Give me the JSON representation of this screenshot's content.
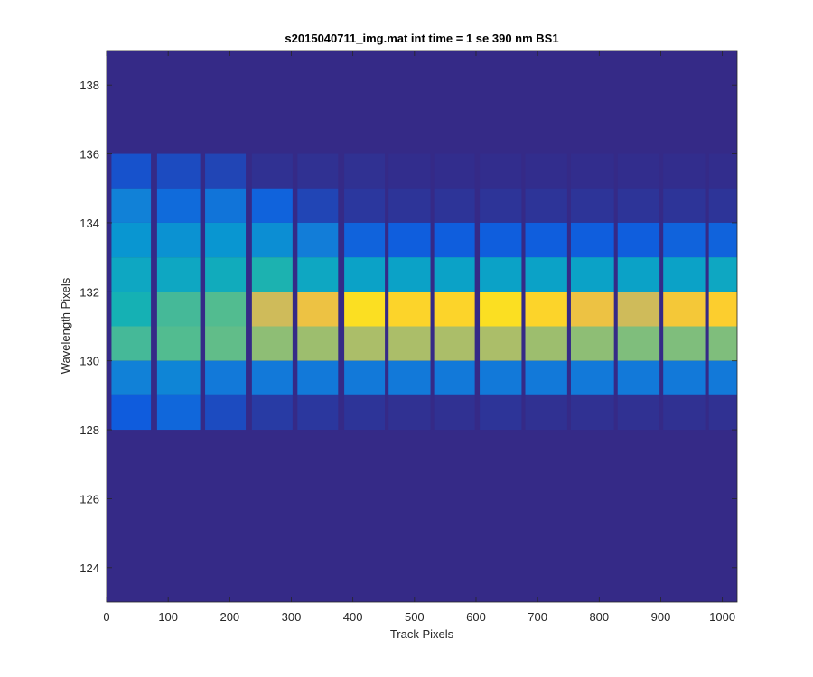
{
  "chart_data": {
    "type": "heatmap",
    "title": "s2015040711_img.mat int time = 1 se  390 nm BS1",
    "xlabel": "Track Pixels",
    "ylabel": "Wavelength Pixels",
    "xlim": [
      0,
      1024
    ],
    "ylim": [
      123,
      139
    ],
    "xticks": [
      0,
      100,
      200,
      300,
      400,
      500,
      600,
      700,
      800,
      900,
      1000
    ],
    "yticks": [
      124,
      126,
      128,
      130,
      132,
      134,
      136,
      138
    ],
    "colormap": "parula",
    "background_color": "#352A87",
    "grid": false,
    "legend": "none",
    "tracks": [
      {
        "x_start": 8,
        "x_end": 72
      },
      {
        "x_start": 82,
        "x_end": 152
      },
      {
        "x_start": 160,
        "x_end": 226
      },
      {
        "x_start": 236,
        "x_end": 302
      },
      {
        "x_start": 310,
        "x_end": 376
      },
      {
        "x_start": 386,
        "x_end": 452
      },
      {
        "x_start": 458,
        "x_end": 526
      },
      {
        "x_start": 532,
        "x_end": 598
      },
      {
        "x_start": 606,
        "x_end": 674
      },
      {
        "x_start": 680,
        "x_end": 748
      },
      {
        "x_start": 754,
        "x_end": 824
      },
      {
        "x_start": 830,
        "x_end": 898
      },
      {
        "x_start": 904,
        "x_end": 972
      },
      {
        "x_start": 978,
        "x_end": 1024
      }
    ],
    "rows": [
      {
        "y_start": 135,
        "y_end": 136,
        "values": [
          0.12,
          0.1,
          0.08,
          0.02,
          0.02,
          0.02,
          0.01,
          0.01,
          0.01,
          0.01,
          0.01,
          0.01,
          0.01,
          0.01
        ]
      },
      {
        "y_start": 134,
        "y_end": 135,
        "values": [
          0.32,
          0.22,
          0.26,
          0.18,
          0.08,
          0.04,
          0.03,
          0.03,
          0.03,
          0.03,
          0.03,
          0.03,
          0.03,
          0.03
        ]
      },
      {
        "y_start": 133,
        "y_end": 134,
        "values": [
          0.42,
          0.4,
          0.42,
          0.38,
          0.3,
          0.18,
          0.16,
          0.16,
          0.16,
          0.16,
          0.16,
          0.16,
          0.18,
          0.18
        ]
      },
      {
        "y_start": 132,
        "y_end": 133,
        "values": [
          0.5,
          0.5,
          0.52,
          0.56,
          0.5,
          0.48,
          0.48,
          0.48,
          0.48,
          0.48,
          0.48,
          0.48,
          0.48,
          0.5
        ]
      },
      {
        "y_start": 131,
        "y_end": 132,
        "values": [
          0.55,
          0.62,
          0.64,
          0.82,
          0.88,
          0.95,
          0.93,
          0.93,
          0.95,
          0.93,
          0.88,
          0.82,
          0.9,
          0.92
        ]
      },
      {
        "y_start": 130,
        "y_end": 131,
        "values": [
          0.62,
          0.64,
          0.66,
          0.72,
          0.74,
          0.76,
          0.76,
          0.76,
          0.76,
          0.74,
          0.72,
          0.7,
          0.7,
          0.7
        ]
      },
      {
        "y_start": 129,
        "y_end": 130,
        "values": [
          0.32,
          0.34,
          0.28,
          0.28,
          0.28,
          0.28,
          0.28,
          0.28,
          0.28,
          0.28,
          0.28,
          0.28,
          0.28,
          0.28
        ]
      },
      {
        "y_start": 128,
        "y_end": 129,
        "values": [
          0.15,
          0.2,
          0.1,
          0.05,
          0.04,
          0.03,
          0.02,
          0.02,
          0.03,
          0.02,
          0.02,
          0.02,
          0.02,
          0.02
        ]
      }
    ]
  }
}
